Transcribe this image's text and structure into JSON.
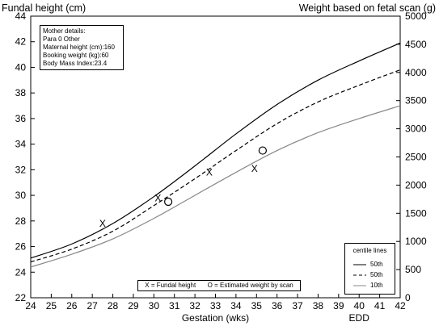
{
  "chart_data": {
    "type": "line",
    "y_title_left": "Fundal height (cm)",
    "y_title_right": "Weight based on fetal scan (g)",
    "x_title": "Gestation (wks)",
    "x_marker": "EDD",
    "x_ticks": [
      24,
      25,
      26,
      27,
      28,
      29,
      30,
      31,
      32,
      33,
      34,
      35,
      36,
      37,
      38,
      39,
      40,
      41,
      42
    ],
    "y_ticks_left": [
      22,
      24,
      26,
      28,
      30,
      32,
      34,
      36,
      38,
      40,
      42,
      44
    ],
    "y_ticks_right": [
      0,
      500,
      1000,
      1500,
      2000,
      2500,
      3000,
      3500,
      4000,
      4500,
      5000
    ],
    "xlim": [
      24,
      42
    ],
    "ylim_left": [
      22,
      44
    ],
    "ylim_right": [
      0,
      5000
    ],
    "mother_details": {
      "title": "Mother details:",
      "lines": [
        "Para 0 Other",
        "Maternal height (cm):160",
        "Booking weight (kg):60",
        "Body Mass Index:23.4"
      ]
    },
    "series": [
      {
        "name": "50th",
        "style": "solid",
        "color": "#000000",
        "x": [
          24,
          26,
          28,
          30,
          32,
          34,
          36,
          38,
          40,
          42
        ],
        "y": [
          25.1,
          26.2,
          27.8,
          29.9,
          32.3,
          34.8,
          37.1,
          39.0,
          40.5,
          41.9
        ]
      },
      {
        "name": "50th",
        "style": "dashed",
        "color": "#000000",
        "x": [
          24,
          26,
          28,
          30,
          32,
          34,
          36,
          38,
          40,
          42
        ],
        "y": [
          24.8,
          25.8,
          27.2,
          29.2,
          31.3,
          33.5,
          35.6,
          37.3,
          38.6,
          39.8
        ]
      },
      {
        "name": "10th",
        "style": "solid",
        "color": "#888888",
        "x": [
          24,
          26,
          28,
          30,
          32,
          34,
          36,
          38,
          40,
          42
        ],
        "y": [
          24.4,
          25.4,
          26.6,
          28.2,
          30.0,
          31.8,
          33.5,
          34.9,
          36.0,
          37.0
        ]
      }
    ],
    "fundal_height_points": {
      "marker": "X",
      "x": [
        27.5,
        30.2,
        32.7,
        34.9
      ],
      "y": [
        27.8,
        29.8,
        31.8,
        32.1
      ]
    },
    "scan_weight_points": {
      "marker": "O",
      "x": [
        30.7,
        35.3
      ],
      "y": [
        29.5,
        33.5
      ]
    },
    "marker_legend": {
      "x_label": "X = Fundal height",
      "o_label": "O = Estimated weight by scan"
    },
    "centile_legend": {
      "title": "centile lines",
      "entries": [
        "50th",
        "50th",
        "10th"
      ]
    },
    "grid": false
  }
}
